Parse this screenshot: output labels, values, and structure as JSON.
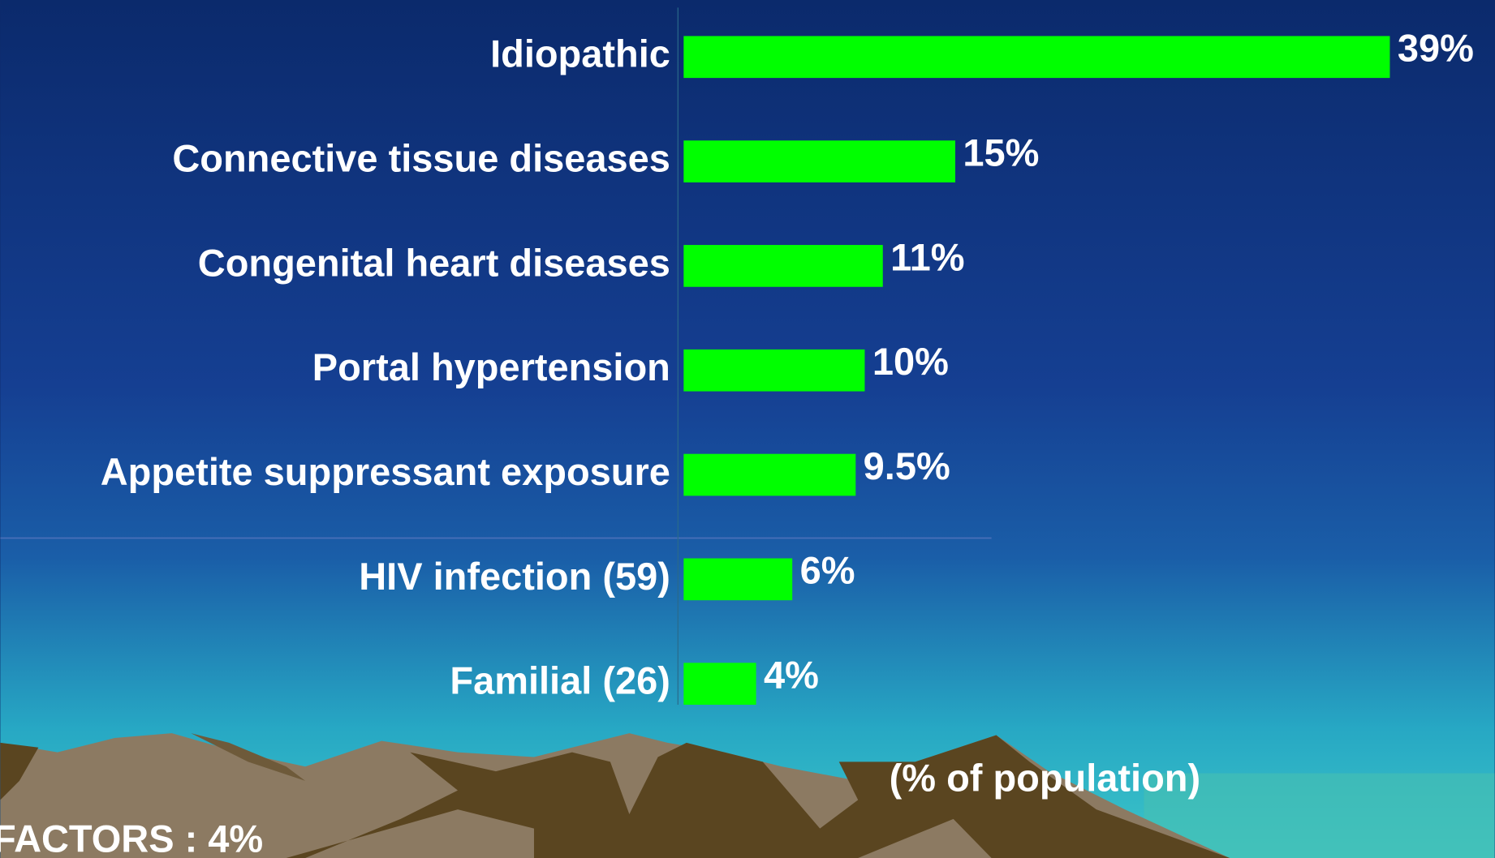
{
  "chart_data": {
    "type": "bar",
    "orientation": "horizontal",
    "categories": [
      "Idiopathic",
      "Connective tissue diseases",
      "Congenital heart diseases",
      "Portal hypertension",
      "Appetite suppressant exposure",
      "HIV infection (59)",
      "Familial (26)"
    ],
    "values": [
      39,
      15,
      11,
      10,
      9.5,
      6,
      4
    ],
    "value_labels": [
      "39%",
      "15%",
      "11%",
      "10%",
      "9.5%",
      "6%",
      "4%"
    ],
    "color": "#00ff00",
    "xlabel": "(% of population)",
    "annotations": [
      "FACTORS : 4%"
    ]
  }
}
